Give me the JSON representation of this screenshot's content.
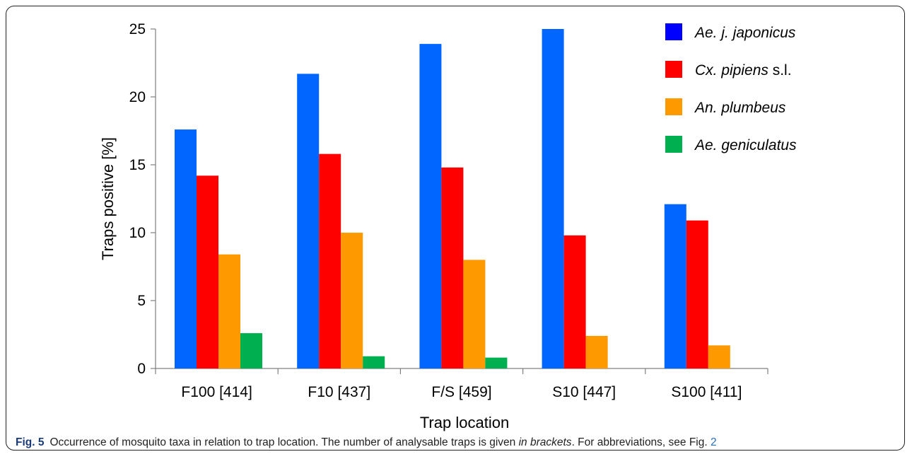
{
  "chart_data": {
    "type": "bar",
    "categories": [
      "F100 [414]",
      "F10 [437]",
      "F/S [459]",
      "S10 [447]",
      "S100 [411]"
    ],
    "series": [
      {
        "name": "Ae. j. japonicus",
        "name_parts": [
          {
            "text": "Ae. j. japonicus",
            "italic": true
          }
        ],
        "color": "#0066ff",
        "values": [
          17.6,
          21.7,
          23.9,
          25.0,
          12.1
        ]
      },
      {
        "name": "Cx. pipiens s.l.",
        "name_parts": [
          {
            "text": "Cx. pipiens",
            "italic": true
          },
          {
            "text": " s.l.",
            "italic": false
          }
        ],
        "color": "#ff0000",
        "values": [
          14.2,
          15.8,
          14.8,
          9.8,
          10.9
        ]
      },
      {
        "name": "An. plumbeus",
        "name_parts": [
          {
            "text": "An. plumbeus",
            "italic": true
          }
        ],
        "color": "#ff9900",
        "values": [
          8.4,
          10.0,
          8.0,
          2.4,
          1.7
        ]
      },
      {
        "name": "Ae. geniculatus",
        "name_parts": [
          {
            "text": "Ae. geniculatus",
            "italic": true
          }
        ],
        "color": "#00b050",
        "values": [
          2.6,
          0.9,
          0.8,
          0,
          0
        ]
      }
    ],
    "xlabel": "Trap location",
    "ylabel": "Traps positive [%]",
    "ylim": [
      0,
      25
    ],
    "yticks": [
      0,
      5,
      10,
      15,
      20,
      25
    ],
    "grid": false,
    "legend_position": "top-right"
  },
  "caption": {
    "label": "Fig. 5",
    "text_1": "Occurrence of mosquito taxa in relation to trap location. The number of analysable traps is given ",
    "italic": "in brackets",
    "text_2": ". For abbreviations, see Fig. ",
    "ref": "2"
  }
}
